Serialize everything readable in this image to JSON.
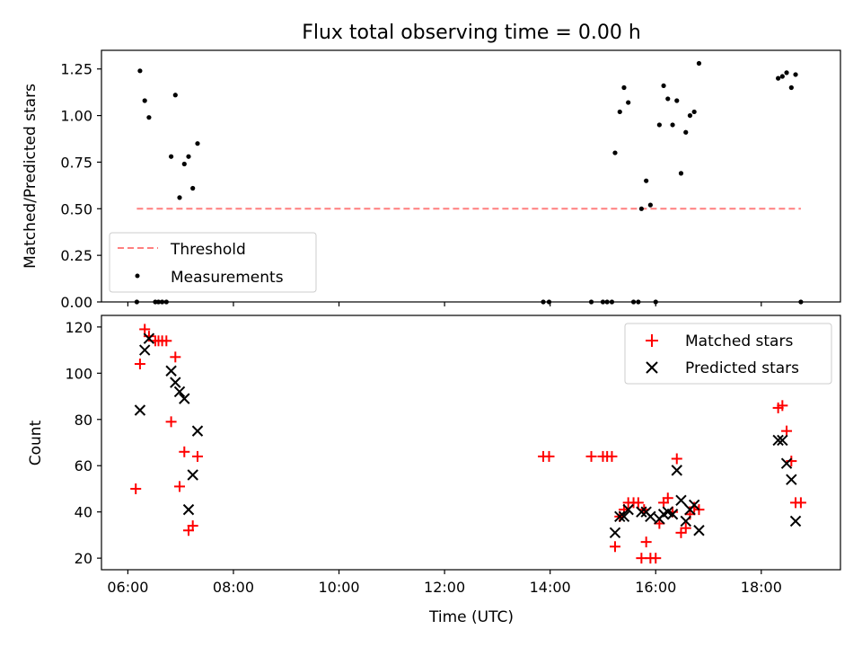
{
  "chart_data": {
    "title": "Flux total observing time = 0.00 h",
    "xlabel": "Time (UTC)",
    "x_unit": "hours UTC",
    "xlim": [
      5.5,
      19.5
    ],
    "x_ticks": [
      {
        "value": 6,
        "label": "06:00"
      },
      {
        "value": 8,
        "label": "08:00"
      },
      {
        "value": 10,
        "label": "10:00"
      },
      {
        "value": 12,
        "label": "12:00"
      },
      {
        "value": 14,
        "label": "14:00"
      },
      {
        "value": 16,
        "label": "16:00"
      },
      {
        "value": 18,
        "label": "18:00"
      }
    ],
    "panels": [
      {
        "type": "scatter",
        "ylabel": "Matched/Predicted stars",
        "ylim": [
          0,
          1.35
        ],
        "y_ticks": [
          "0.00",
          "0.25",
          "0.50",
          "0.75",
          "1.00",
          "1.25"
        ],
        "y_tick_values": [
          0,
          0.25,
          0.5,
          0.75,
          1.0,
          1.25
        ],
        "legend_position": "lower-left",
        "threshold": {
          "name": "Threshold",
          "x": [
            6.17,
            18.75
          ],
          "y": 0.5,
          "color": "#ff7f7f",
          "style": "dashed"
        },
        "series": [
          {
            "name": "Measurements",
            "marker": "dot",
            "color": "#000000",
            "points": [
              [
                6.17,
                0.0
              ],
              [
                6.23,
                1.24
              ],
              [
                6.32,
                1.08
              ],
              [
                6.4,
                0.99
              ],
              [
                6.52,
                0.0
              ],
              [
                6.58,
                0.0
              ],
              [
                6.65,
                0.0
              ],
              [
                6.73,
                0.0
              ],
              [
                6.82,
                0.78
              ],
              [
                6.9,
                1.11
              ],
              [
                6.98,
                0.56
              ],
              [
                7.07,
                0.74
              ],
              [
                7.15,
                0.78
              ],
              [
                7.23,
                0.61
              ],
              [
                7.32,
                0.85
              ],
              [
                13.87,
                0.0
              ],
              [
                13.98,
                0.0
              ],
              [
                14.78,
                0.0
              ],
              [
                15.0,
                0.0
              ],
              [
                15.08,
                0.0
              ],
              [
                15.17,
                0.0
              ],
              [
                15.23,
                0.8
              ],
              [
                15.32,
                1.02
              ],
              [
                15.4,
                1.15
              ],
              [
                15.48,
                1.07
              ],
              [
                15.58,
                0.0
              ],
              [
                15.67,
                0.0
              ],
              [
                15.73,
                0.5
              ],
              [
                15.82,
                0.65
              ],
              [
                15.9,
                0.52
              ],
              [
                16.0,
                0.0
              ],
              [
                16.07,
                0.95
              ],
              [
                16.15,
                1.16
              ],
              [
                16.23,
                1.09
              ],
              [
                16.32,
                0.95
              ],
              [
                16.4,
                1.08
              ],
              [
                16.48,
                0.69
              ],
              [
                16.57,
                0.91
              ],
              [
                16.65,
                1.0
              ],
              [
                16.73,
                1.02
              ],
              [
                16.82,
                1.28
              ],
              [
                18.32,
                1.2
              ],
              [
                18.4,
                1.21
              ],
              [
                18.48,
                1.23
              ],
              [
                18.57,
                1.15
              ],
              [
                18.65,
                1.22
              ],
              [
                18.75,
                0.0
              ]
            ]
          }
        ]
      },
      {
        "type": "scatter",
        "ylabel": "Count",
        "ylim": [
          15,
          125
        ],
        "y_ticks": [
          "20",
          "40",
          "60",
          "80",
          "100",
          "120"
        ],
        "y_tick_values": [
          20,
          40,
          60,
          80,
          100,
          120
        ],
        "legend_position": "top-right",
        "series": [
          {
            "name": "Matched stars",
            "marker": "plus",
            "color": "#ff0000",
            "points": [
              [
                6.15,
                50
              ],
              [
                6.23,
                104
              ],
              [
                6.32,
                119
              ],
              [
                6.4,
                116
              ],
              [
                6.52,
                114
              ],
              [
                6.58,
                114
              ],
              [
                6.65,
                114
              ],
              [
                6.73,
                114
              ],
              [
                6.82,
                79
              ],
              [
                6.9,
                107
              ],
              [
                6.98,
                51
              ],
              [
                7.07,
                66
              ],
              [
                7.15,
                32
              ],
              [
                7.23,
                34
              ],
              [
                7.32,
                64
              ],
              [
                13.87,
                64
              ],
              [
                13.98,
                64
              ],
              [
                14.78,
                64
              ],
              [
                15.0,
                64
              ],
              [
                15.08,
                64
              ],
              [
                15.17,
                64
              ],
              [
                15.23,
                25
              ],
              [
                15.32,
                38
              ],
              [
                15.4,
                41
              ],
              [
                15.48,
                44
              ],
              [
                15.58,
                44
              ],
              [
                15.67,
                44
              ],
              [
                15.73,
                20
              ],
              [
                15.78,
                41
              ],
              [
                15.82,
                27
              ],
              [
                15.9,
                20
              ],
              [
                16.0,
                20
              ],
              [
                16.07,
                35
              ],
              [
                16.15,
                44
              ],
              [
                16.23,
                46
              ],
              [
                16.32,
                40
              ],
              [
                16.4,
                63
              ],
              [
                16.48,
                31
              ],
              [
                16.57,
                33
              ],
              [
                16.65,
                39
              ],
              [
                16.73,
                42
              ],
              [
                16.82,
                41
              ],
              [
                18.32,
                85
              ],
              [
                18.4,
                86
              ],
              [
                18.48,
                75
              ],
              [
                18.57,
                62
              ],
              [
                18.65,
                44
              ],
              [
                18.75,
                44
              ]
            ]
          },
          {
            "name": "Predicted stars",
            "marker": "x",
            "color": "#000000",
            "points": [
              [
                6.23,
                84
              ],
              [
                6.32,
                110
              ],
              [
                6.4,
                115
              ],
              [
                6.82,
                101
              ],
              [
                6.9,
                96
              ],
              [
                6.98,
                92
              ],
              [
                7.07,
                89
              ],
              [
                7.15,
                41
              ],
              [
                7.23,
                56
              ],
              [
                7.32,
                75
              ],
              [
                15.23,
                31
              ],
              [
                15.32,
                38
              ],
              [
                15.4,
                38
              ],
              [
                15.48,
                41
              ],
              [
                15.73,
                40
              ],
              [
                15.82,
                40
              ],
              [
                15.9,
                38
              ],
              [
                16.07,
                37
              ],
              [
                16.15,
                39
              ],
              [
                16.23,
                40
              ],
              [
                16.32,
                39
              ],
              [
                16.4,
                58
              ],
              [
                16.48,
                45
              ],
              [
                16.57,
                36
              ],
              [
                16.65,
                41
              ],
              [
                16.73,
                43
              ],
              [
                16.82,
                32
              ],
              [
                18.32,
                71
              ],
              [
                18.4,
                71
              ],
              [
                18.48,
                61
              ],
              [
                18.57,
                54
              ],
              [
                18.65,
                36
              ]
            ]
          }
        ]
      }
    ]
  }
}
